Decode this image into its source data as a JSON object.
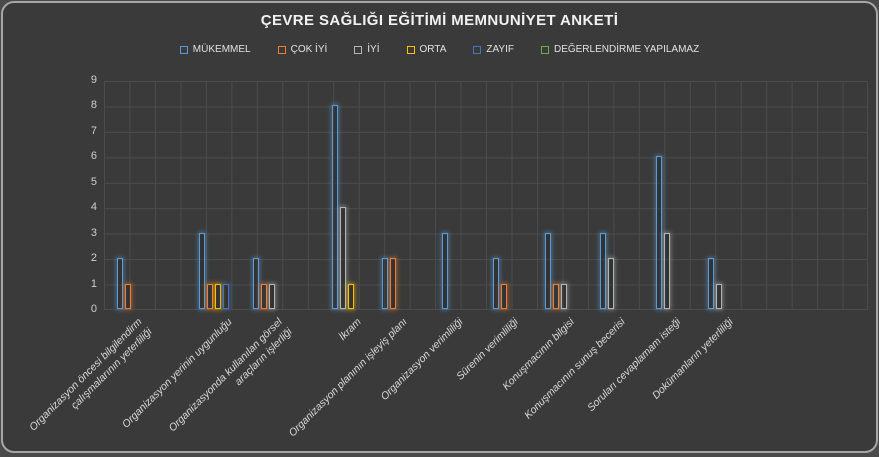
{
  "theme": {
    "panel_background": "#3a3a3a",
    "panel_border": "#a6a6a6",
    "grid_color": "#4c4c4c",
    "title_color": "#f2f2f2",
    "tick_color": "#cfcfcf",
    "label_color": "#dadada"
  },
  "chart_data": {
    "type": "bar",
    "title": "ÇEVRE SAĞLIĞI EĞİTİMİ MEMNUNİYET ANKETİ",
    "legend_position": "top",
    "grid": "both",
    "ylim": [
      0,
      9
    ],
    "ytick_step": 1,
    "categories": [
      "Organizasyon öncesi bilgilendirm\nçalışmalarının yeterliliği",
      "Organizasyon yerinin uygunluğu",
      "Organizasyonda kullanılan görsel\naraçların işlerliği",
      "İkram",
      "Organizasyon planının işleyiş planı",
      "Organizasyon verimliliği",
      "Sürenin verimliliği",
      "Konuşmacının bilgisi",
      "Konuşmacının sunuş becerisi",
      "Soruları cevaplamam isteği",
      "Dokümanların yeterliliği"
    ],
    "series": [
      {
        "name": "MÜKEMMEL",
        "color": "#5B9BD5",
        "values": [
          2,
          3,
          2,
          8,
          2,
          3,
          2,
          3,
          3,
          6,
          2
        ]
      },
      {
        "name": "ÇOK İYİ",
        "color": "#ED7D31",
        "values": [
          1,
          1,
          1,
          0,
          2,
          0,
          1,
          1,
          0,
          0,
          0
        ]
      },
      {
        "name": "İYİ",
        "color": "#B5B5B5",
        "values": [
          0,
          0,
          1,
          4,
          0,
          0,
          0,
          1,
          2,
          3,
          1
        ]
      },
      {
        "name": "ORTA",
        "color": "#FFC000",
        "values": [
          0,
          1,
          0,
          1,
          0,
          0,
          0,
          0,
          0,
          0,
          0
        ]
      },
      {
        "name": "ZAYIF",
        "color": "#4472C4",
        "values": [
          0,
          1,
          0,
          0,
          0,
          0,
          0,
          0,
          0,
          0,
          0
        ]
      },
      {
        "name": "DEĞERLENDİRME YAPILAMAZ",
        "color": "#70AD47",
        "values": [
          0,
          0,
          0,
          0,
          0,
          0,
          0,
          0,
          0,
          0,
          0
        ]
      }
    ]
  }
}
